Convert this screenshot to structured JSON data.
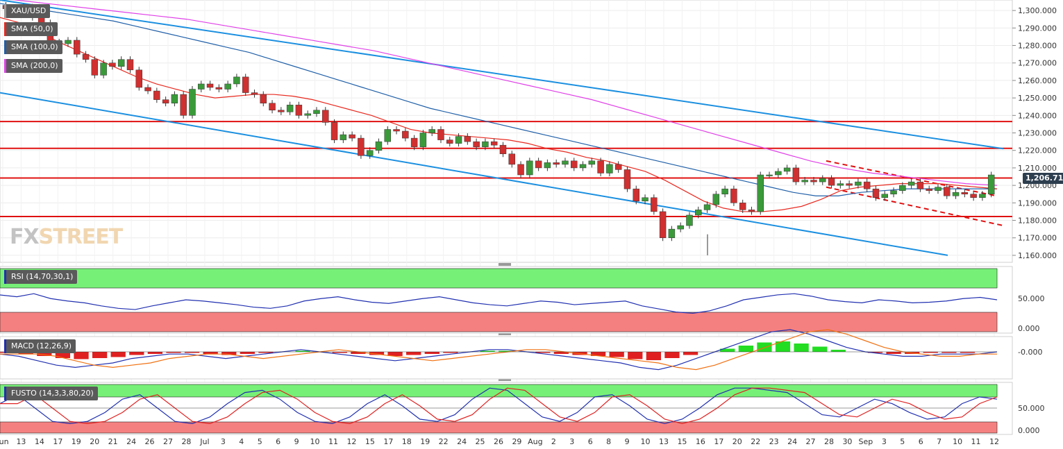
{
  "chart_data": {
    "type": "candlestick",
    "symbol": "XAU/USD",
    "current_price": "1,206.710",
    "price_axis": {
      "ylim": [
        1156,
        1306
      ],
      "ticks": [
        "1,300.000",
        "1,290.000",
        "1,280.000",
        "1,270.000",
        "1,260.000",
        "1,250.000",
        "1,240.000",
        "1,230.000",
        "1,220.000",
        "1,210.000",
        "1,200.000",
        "1,190.000",
        "1,180.000",
        "1,170.000",
        "1,160.000"
      ]
    },
    "x_ticks": [
      "Jun",
      "13",
      "14",
      "17",
      "19",
      "20",
      "21",
      "24",
      "26",
      "27",
      "28",
      "Jul",
      "3",
      "4",
      "5",
      "6",
      "9",
      "10",
      "11",
      "12",
      "15",
      "17",
      "18",
      "19",
      "22",
      "24",
      "25",
      "26",
      "29",
      "Aug",
      "2",
      "3",
      "6",
      "8",
      "9",
      "10",
      "13",
      "15",
      "16",
      "17",
      "20",
      "22",
      "23",
      "24",
      "27",
      "28",
      "30",
      "Sep",
      "3",
      "5",
      "6",
      "7",
      "10",
      "11",
      "12"
    ],
    "close_series": [
      1301,
      1298,
      1302,
      1296,
      1293,
      1282,
      1281,
      1283,
      1275,
      1272,
      1263,
      1270,
      1268,
      1272,
      1266,
      1256,
      1254,
      1249,
      1247,
      1252,
      1240,
      1255,
      1258,
      1256,
      1255,
      1258,
      1262,
      1253,
      1252,
      1247,
      1243,
      1242,
      1246,
      1240,
      1241,
      1243,
      1236,
      1226,
      1229,
      1227,
      1217,
      1220,
      1225,
      1232,
      1231,
      1227,
      1222,
      1230,
      1232,
      1226,
      1224,
      1228,
      1225,
      1222,
      1225,
      1223,
      1218,
      1212,
      1206,
      1214,
      1210,
      1213,
      1212,
      1214,
      1210,
      1212,
      1214,
      1207,
      1212,
      1209,
      1198,
      1191,
      1193,
      1185,
      1170,
      1175,
      1177,
      1183,
      1186,
      1189,
      1195,
      1198,
      1190,
      1186,
      1185,
      1206,
      1206,
      1208,
      1210,
      1202,
      1203,
      1202,
      1204,
      1200,
      1201,
      1200,
      1202,
      1198,
      1193,
      1195,
      1197,
      1200,
      1202,
      1198,
      1197,
      1199,
      1194,
      1196,
      1195,
      1193,
      1195,
      1206
    ],
    "sma_50": [
      1296,
      1293,
      1288,
      1282,
      1277,
      1272,
      1267,
      1262,
      1258,
      1255,
      1252,
      1250,
      1251,
      1252,
      1252,
      1251,
      1249,
      1246,
      1243,
      1240,
      1236,
      1232,
      1230,
      1229,
      1228,
      1227,
      1226,
      1224,
      1221,
      1219,
      1216,
      1214,
      1211,
      1208,
      1203,
      1197,
      1191,
      1187,
      1185,
      1185,
      1186,
      1188,
      1192,
      1197,
      1199,
      1200,
      1201,
      1201,
      1201,
      1200,
      1199,
      1198
    ],
    "sma_100": [
      1304,
      1302,
      1300,
      1298,
      1296,
      1294,
      1291,
      1288,
      1285,
      1282,
      1279,
      1276,
      1272,
      1268,
      1264,
      1260,
      1256,
      1252,
      1248,
      1244,
      1241,
      1238,
      1235,
      1232,
      1229,
      1226,
      1223,
      1220,
      1217,
      1214,
      1211,
      1208,
      1205,
      1202,
      1199,
      1196,
      1194,
      1194,
      1196,
      1197,
      1198,
      1198,
      1198,
      1198,
      1198
    ],
    "sma_200": [
      1307,
      1305,
      1303,
      1301,
      1299,
      1297,
      1295,
      1292,
      1289,
      1286,
      1283,
      1280,
      1277,
      1273,
      1269,
      1265,
      1261,
      1257,
      1253,
      1249,
      1244,
      1239,
      1234,
      1229,
      1224,
      1219,
      1214,
      1210,
      1207,
      1205,
      1203,
      1201,
      1200
    ],
    "horizontal_levels": [
      1236.5,
      1221.2,
      1204.2,
      1182.2
    ],
    "channel": {
      "upper": [
        [
          0,
          1306
        ],
        [
          1445,
          1221
        ]
      ],
      "lower": [
        [
          0,
          1253
        ],
        [
          1365,
          1160
        ]
      ]
    },
    "wedge": {
      "upper": [
        [
          1190,
          1214
        ],
        [
          1435,
          1194
        ]
      ],
      "lower": [
        [
          1190,
          1199
        ],
        [
          1445,
          1177
        ]
      ]
    },
    "indicators": [
      {
        "name": "RSI (14,70,30,1)",
        "ticks": [
          "50.000",
          "0.000"
        ],
        "series": [
          58,
          55,
          60,
          52,
          48,
          45,
          40,
          36,
          34,
          40,
          45,
          50,
          48,
          45,
          42,
          38,
          36,
          40,
          48,
          52,
          55,
          50,
          46,
          44,
          48,
          52,
          55,
          50,
          45,
          42,
          40,
          44,
          48,
          46,
          42,
          44,
          46,
          48,
          40,
          35,
          30,
          28,
          32,
          40,
          50,
          54,
          58,
          60,
          56,
          50,
          47,
          45,
          50,
          48,
          45,
          46,
          48,
          52,
          54,
          50
        ]
      },
      {
        "name": "MACD (12,26,9)",
        "ticks": [
          "-0.000"
        ],
        "series": [
          -1,
          -2,
          -4,
          -6,
          -7,
          -6,
          -5,
          -3,
          -2,
          -1,
          -1,
          -2,
          -3,
          -2,
          -1,
          0,
          1,
          0,
          -1,
          -2,
          -3,
          -4,
          -3,
          -2,
          -1,
          0,
          1,
          1,
          0,
          -1,
          -2,
          -3,
          -4,
          -5,
          -7,
          -8,
          -6,
          -3,
          0,
          3,
          6,
          9,
          10,
          8,
          5,
          2,
          0,
          -1,
          -2,
          -2,
          -1,
          -1,
          -1,
          0
        ]
      },
      {
        "name": "FUSTO (14,3,3,80,20)",
        "ticks": [
          "50.000",
          "0.000"
        ],
        "series": [
          60,
          80,
          50,
          20,
          15,
          20,
          40,
          70,
          80,
          50,
          20,
          15,
          30,
          60,
          85,
          90,
          70,
          40,
          20,
          15,
          30,
          60,
          80,
          55,
          25,
          20,
          35,
          70,
          95,
          90,
          60,
          30,
          20,
          40,
          75,
          80,
          55,
          25,
          15,
          25,
          50,
          80,
          95,
          95,
          90,
          85,
          60,
          35,
          30,
          50,
          70,
          60,
          40,
          25,
          30,
          60,
          75,
          70
        ]
      }
    ],
    "legend": [
      "SMA (50,0)",
      "SMA (100,0)",
      "SMA (200,0)"
    ]
  },
  "watermark": {
    "part1": "FX",
    "part2": "STREET"
  },
  "colors": {
    "sma50": "#e8281e",
    "sma100": "#1f5fa8",
    "sma200": "#e040e8",
    "levels": "#e01010",
    "channel": "#1a8fe0",
    "bull": "#3a9a3a",
    "bear": "#d03030",
    "rsi": "#2030b0",
    "zone_green": "#77f077",
    "zone_red": "#f58080"
  }
}
